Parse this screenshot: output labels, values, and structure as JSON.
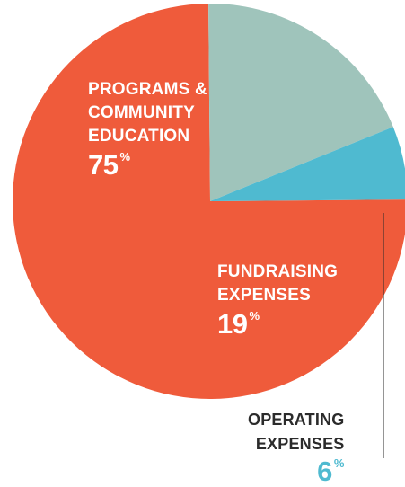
{
  "chart_data": {
    "type": "pie",
    "slices": [
      {
        "label_lines": [
          "PROGRAMS &",
          "COMMUNITY",
          "EDUCATION"
        ],
        "value": 75,
        "value_text": "75",
        "unit": "%",
        "color": "#ef5b3b",
        "label_color": "#ffffff",
        "percent_color": "#ffffff"
      },
      {
        "label_lines": [
          "FUNDRAISING",
          "EXPENSES"
        ],
        "value": 19,
        "value_text": "19",
        "unit": "%",
        "color": "#9fc4bb",
        "label_color": "#ffffff",
        "percent_color": "#ffffff"
      },
      {
        "label_lines": [
          "OPERATING",
          "EXPENSES"
        ],
        "value": 6,
        "value_text": "6",
        "unit": "%",
        "color": "#4fbad0",
        "label_color": "#2b2b2b",
        "percent_color": "#4fbad0"
      }
    ],
    "leader_line_color": "#2b2b2b"
  }
}
